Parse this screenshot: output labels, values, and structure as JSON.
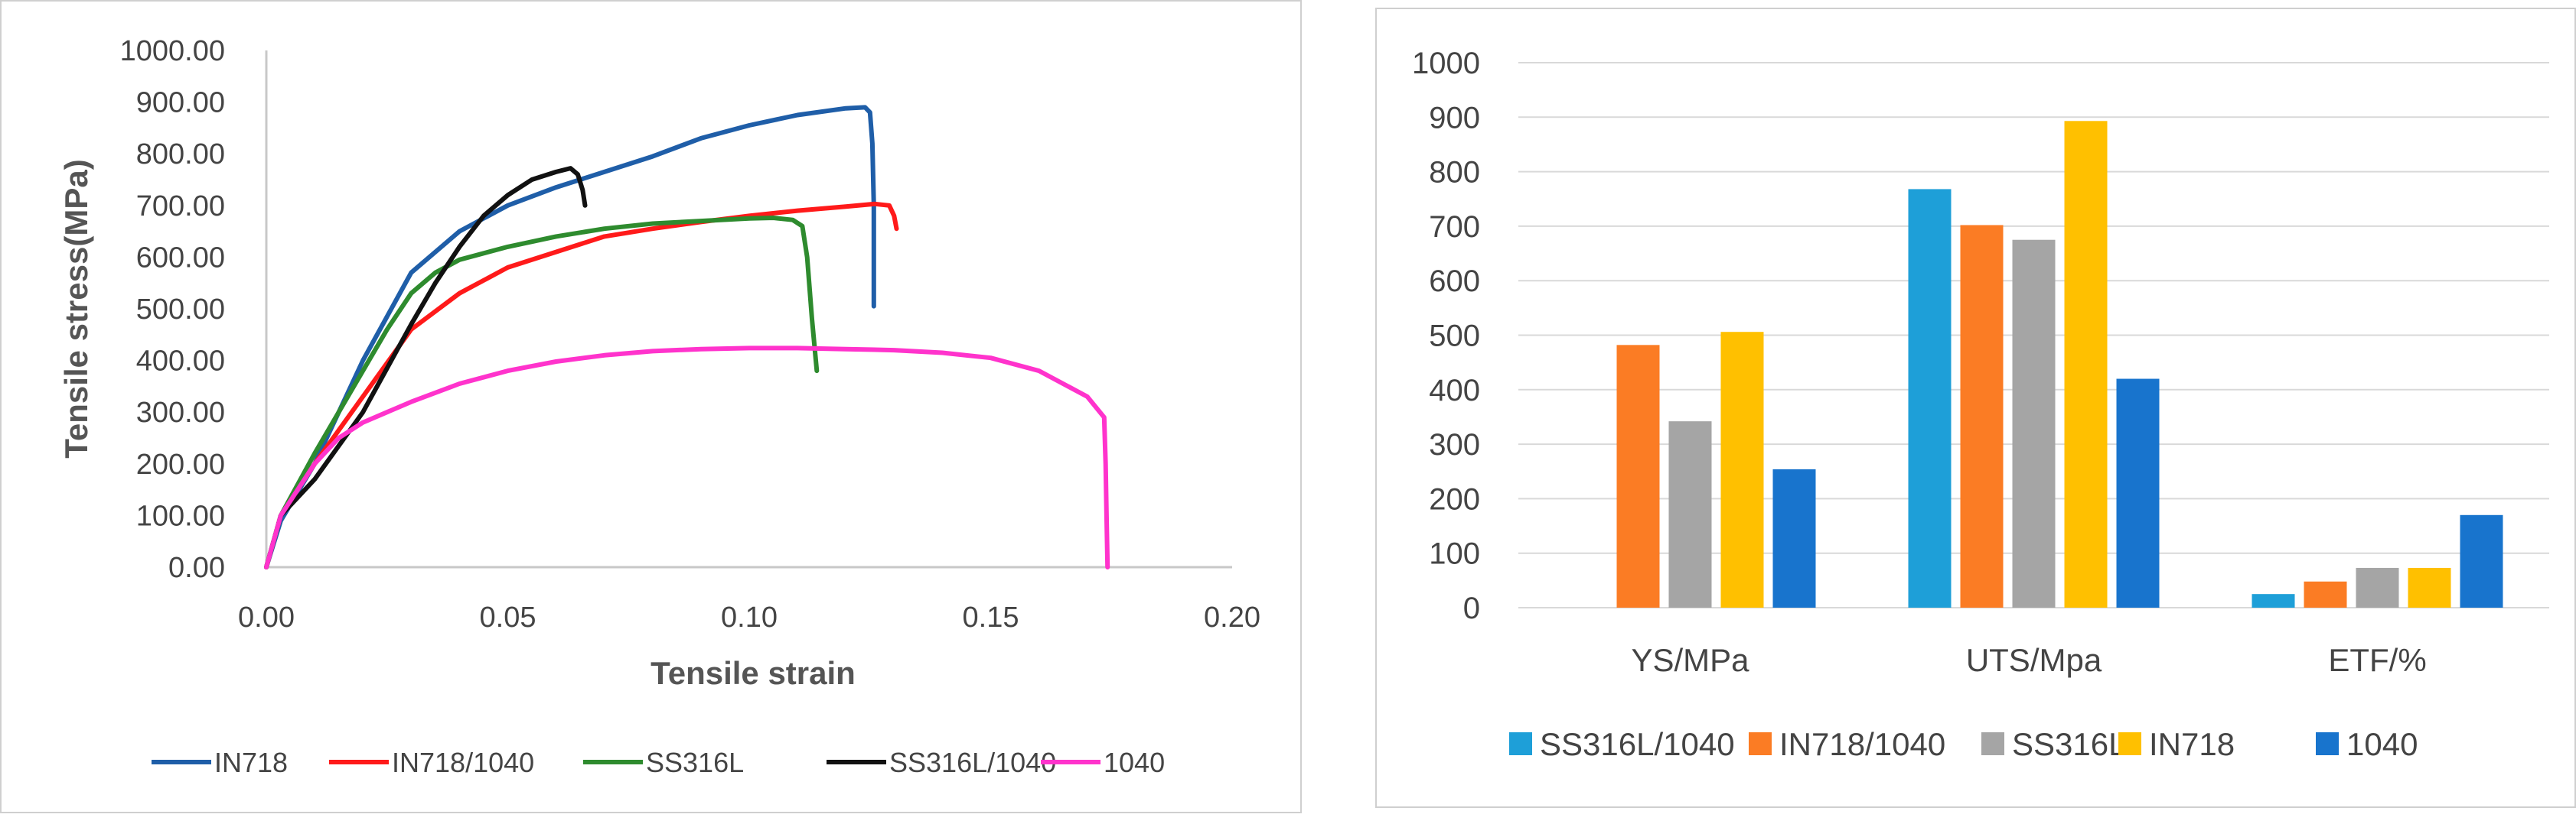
{
  "chart_data": [
    {
      "type": "line",
      "title": "",
      "xlabel": "Tensile strain",
      "ylabel": "Tensile stress(MPa)",
      "xlim": [
        0,
        0.2
      ],
      "ylim": [
        0,
        1000
      ],
      "x_ticks": [
        "0.00",
        "0.05",
        "0.10",
        "0.15",
        "0.20"
      ],
      "y_ticks": [
        "0.00",
        "100.00",
        "200.00",
        "300.00",
        "400.00",
        "500.00",
        "600.00",
        "700.00",
        "800.00",
        "900.00",
        "1000.00"
      ],
      "grid": false,
      "legend_position": "bottom",
      "series": [
        {
          "name": "IN718",
          "color": "#1f5ea8",
          "x": [
            0,
            0.003,
            0.01,
            0.02,
            0.03,
            0.04,
            0.05,
            0.06,
            0.07,
            0.08,
            0.09,
            0.1,
            0.11,
            0.12,
            0.124,
            0.125,
            0.1255,
            0.1258,
            0.1258
          ],
          "y": [
            0,
            90,
            200,
            400,
            570,
            650,
            700,
            735,
            765,
            795,
            830,
            855,
            875,
            888,
            890,
            880,
            820,
            700,
            505
          ]
        },
        {
          "name": "IN718/1040",
          "color": "#ff1a1a",
          "x": [
            0,
            0.003,
            0.01,
            0.02,
            0.03,
            0.04,
            0.05,
            0.06,
            0.07,
            0.08,
            0.09,
            0.1,
            0.11,
            0.12,
            0.126,
            0.129,
            0.13,
            0.1305
          ],
          "y": [
            0,
            100,
            200,
            330,
            460,
            530,
            580,
            610,
            640,
            655,
            668,
            680,
            690,
            698,
            703,
            700,
            680,
            655
          ]
        },
        {
          "name": "SS316L",
          "color": "#2e8b2e",
          "x": [
            0,
            0.003,
            0.01,
            0.02,
            0.025,
            0.03,
            0.035,
            0.04,
            0.05,
            0.06,
            0.07,
            0.08,
            0.09,
            0.1,
            0.105,
            0.109,
            0.111,
            0.112,
            0.113,
            0.114
          ],
          "y": [
            0,
            100,
            220,
            380,
            460,
            530,
            570,
            595,
            620,
            640,
            655,
            665,
            670,
            675,
            676,
            672,
            660,
            600,
            480,
            380
          ]
        },
        {
          "name": "SS316L/1040",
          "color": "#111111",
          "x": [
            0,
            0.003,
            0.01,
            0.02,
            0.03,
            0.035,
            0.04,
            0.045,
            0.05,
            0.055,
            0.06,
            0.063,
            0.0645,
            0.0655,
            0.066
          ],
          "y": [
            0,
            100,
            170,
            300,
            470,
            550,
            620,
            680,
            720,
            750,
            765,
            772,
            760,
            730,
            700
          ]
        },
        {
          "name": "1040",
          "color": "#ff33cc",
          "x": [
            0,
            0.003,
            0.01,
            0.015,
            0.02,
            0.03,
            0.04,
            0.05,
            0.06,
            0.07,
            0.08,
            0.09,
            0.1,
            0.11,
            0.12,
            0.13,
            0.14,
            0.15,
            0.16,
            0.17,
            0.1735,
            0.1738,
            0.174,
            0.1742
          ],
          "y": [
            0,
            100,
            200,
            250,
            280,
            320,
            355,
            380,
            398,
            410,
            418,
            422,
            424,
            424,
            422,
            420,
            415,
            405,
            380,
            330,
            290,
            200,
            100,
            0
          ]
        }
      ]
    },
    {
      "type": "bar",
      "title": "",
      "categories": [
        "YS/MPa",
        "UTS/Mpa",
        "ETF/%"
      ],
      "ylim": [
        0,
        1000
      ],
      "y_ticks": [
        "0",
        "100",
        "200",
        "300",
        "400",
        "500",
        "600",
        "700",
        "800",
        "900",
        "1000"
      ],
      "grid": true,
      "legend_position": "bottom",
      "series": [
        {
          "name": "SS316L/1040",
          "color": "#1e9fd8",
          "values": [
            null,
            768,
            25
          ]
        },
        {
          "name": "IN718/1040",
          "color": "#fb7c24",
          "values": [
            482,
            702,
            48
          ]
        },
        {
          "name": "SS316L",
          "color": "#a5a5a5",
          "values": [
            342,
            675,
            73
          ]
        },
        {
          "name": "IN718",
          "color": "#ffc000",
          "values": [
            506,
            893,
            73
          ]
        },
        {
          "name": "1040",
          "color": "#1874cd",
          "values": [
            254,
            420,
            170
          ]
        }
      ]
    }
  ]
}
